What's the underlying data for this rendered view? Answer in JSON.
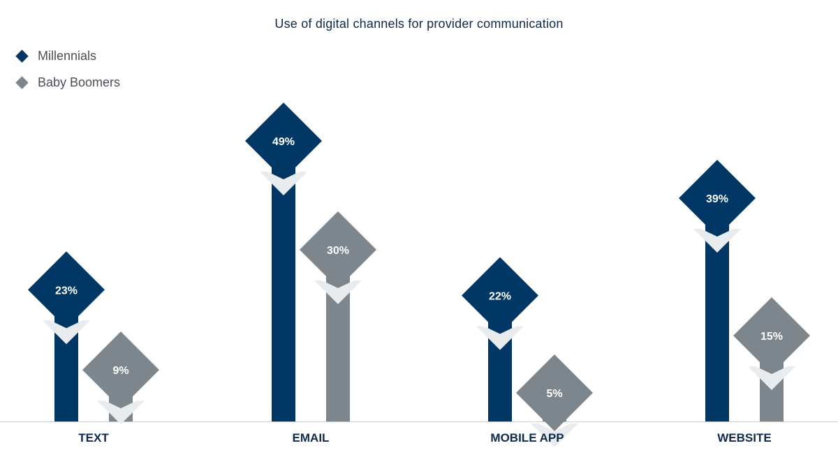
{
  "chart_data": {
    "type": "bar",
    "title": "Use of digital channels for provider communication",
    "categories": [
      "TEXT",
      "EMAIL",
      "MOBILE APP",
      "WEBSITE"
    ],
    "series": [
      {
        "name": "Millennials",
        "values": [
          23,
          49,
          22,
          39
        ],
        "labels": [
          "23%",
          "49%",
          "22%",
          "39%"
        ],
        "color": "#003764"
      },
      {
        "name": "Baby Boomers",
        "values": [
          9,
          30,
          5,
          15
        ],
        "labels": [
          "9%",
          "30%",
          "5%",
          "15%"
        ],
        "color": "#7d868c"
      }
    ],
    "xlabel": "",
    "ylabel": "",
    "ylim": [
      0,
      55
    ],
    "legend": "top-left",
    "grid": false
  },
  "colors": {
    "millennials": "#003764",
    "baby_boomers": "#7d868c",
    "notch": "#e8ecee",
    "axis": "#c8cccf",
    "category_text": "#0f2a4a"
  }
}
